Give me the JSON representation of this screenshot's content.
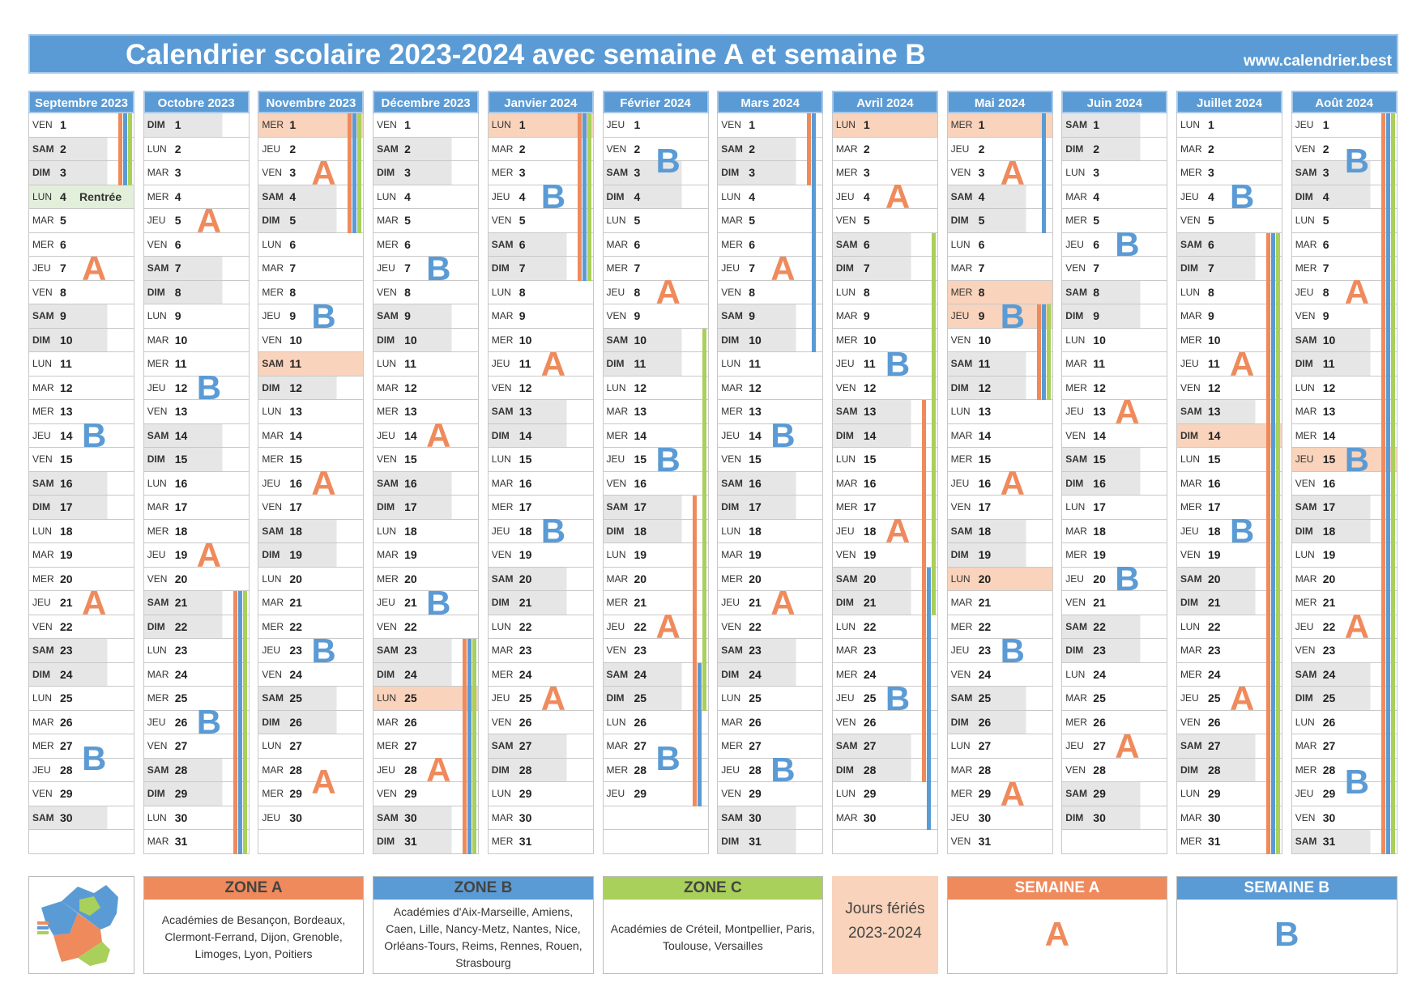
{
  "header": {
    "title": "Calendrier scolaire 2023-2024 avec semaine A et semaine B",
    "website": "www.calendrier.best"
  },
  "weekday_names": [
    "LUN",
    "MAR",
    "MER",
    "JEU",
    "VEN",
    "SAM",
    "DIM"
  ],
  "weekend": [
    5,
    6
  ],
  "week_colors": {
    "A": "#ef8a5c",
    "B": "#5b9bd5"
  },
  "holiday_color": "#f9d3bb",
  "zones": [
    {
      "title": "ZONE A",
      "color": "#ef8a5c",
      "text": "Académies de Besançon, Bordeaux, Clermont-Ferrand, Dijon, Grenoble, Limoges, Lyon, Poitiers"
    },
    {
      "title": "ZONE B",
      "color": "#5b9bd5",
      "text": "Académies d'Aix-Marseille, Amiens, Caen, Lille, Nancy-Metz, Nantes, Nice, Orléans-Tours, Reims, Rennes, Rouen, Strasbourg"
    },
    {
      "title": "ZONE C",
      "color": "#a9d05a",
      "text": "Académies de Créteil, Montpellier, Paris, Toulouse, Versailles"
    }
  ],
  "holidays_legend": {
    "title": "Jours fériés",
    "subtitle": "2023-2024"
  },
  "week_legend": [
    {
      "title": "SEMAINE A",
      "label": "A",
      "color": "#ef8a5c"
    },
    {
      "title": "SEMAINE B",
      "label": "B",
      "color": "#5b9bd5"
    }
  ],
  "months": [
    {
      "title": "Septembre 2023",
      "first_weekday": 4,
      "days": [
        1,
        2,
        3,
        4,
        5,
        6,
        7,
        8,
        9,
        10,
        11,
        12,
        13,
        14,
        15,
        16,
        17,
        18,
        19,
        20,
        21,
        22,
        23,
        24,
        25,
        26,
        27,
        28,
        29,
        30
      ],
      "weeks": [
        null,
        "A",
        "B",
        "A",
        "B"
      ],
      "public_holidays": [],
      "notes": [
        {
          "day": 4,
          "text": "Rentrée",
          "color": "#e2efda"
        }
      ],
      "bands": [
        {
          "zone": 0,
          "from": 1,
          "to": 3
        },
        {
          "zone": 1,
          "from": 1,
          "to": 3
        },
        {
          "zone": 2,
          "from": 1,
          "to": 3
        }
      ]
    },
    {
      "title": "Octobre 2023",
      "first_weekday": 6,
      "days": [
        1,
        2,
        3,
        4,
        5,
        6,
        7,
        8,
        9,
        10,
        11,
        12,
        13,
        14,
        15,
        16,
        17,
        18,
        19,
        20,
        21,
        22,
        23,
        24,
        25,
        26,
        27,
        28,
        29,
        30,
        31
      ],
      "weeks": [
        null,
        "A",
        "B",
        "A",
        "B",
        null
      ],
      "public_holidays": [],
      "notes": [],
      "bands": [
        {
          "zone": 0,
          "from": 21,
          "to": 31
        },
        {
          "zone": 1,
          "from": 21,
          "to": 31
        },
        {
          "zone": 2,
          "from": 21,
          "to": 31
        }
      ]
    },
    {
      "title": "Novembre 2023",
      "first_weekday": 2,
      "days": [
        1,
        2,
        3,
        4,
        5,
        6,
        7,
        8,
        9,
        10,
        11,
        12,
        13,
        14,
        15,
        16,
        17,
        18,
        19,
        20,
        21,
        22,
        23,
        24,
        25,
        26,
        27,
        28,
        29,
        30
      ],
      "weeks": [
        "A",
        "B",
        "A",
        "B",
        "A"
      ],
      "public_holidays": [
        1,
        11
      ],
      "notes": [],
      "bands": [
        {
          "zone": 0,
          "from": 1,
          "to": 5
        },
        {
          "zone": 1,
          "from": 1,
          "to": 5
        },
        {
          "zone": 2,
          "from": 1,
          "to": 5
        }
      ]
    },
    {
      "title": "Décembre 2023",
      "first_weekday": 4,
      "days": [
        1,
        2,
        3,
        4,
        5,
        6,
        7,
        8,
        9,
        10,
        11,
        12,
        13,
        14,
        15,
        16,
        17,
        18,
        19,
        20,
        21,
        22,
        23,
        24,
        25,
        26,
        27,
        28,
        29,
        30,
        31
      ],
      "weeks": [
        null,
        "B",
        "A",
        "B",
        "A"
      ],
      "public_holidays": [
        25
      ],
      "notes": [],
      "bands": [
        {
          "zone": 0,
          "from": 23,
          "to": 31
        },
        {
          "zone": 1,
          "from": 23,
          "to": 31
        },
        {
          "zone": 2,
          "from": 23,
          "to": 31
        }
      ]
    },
    {
      "title": "Janvier 2024",
      "first_weekday": 0,
      "days": [
        1,
        2,
        3,
        4,
        5,
        6,
        7,
        8,
        9,
        10,
        11,
        12,
        13,
        14,
        15,
        16,
        17,
        18,
        19,
        20,
        21,
        22,
        23,
        24,
        25,
        26,
        27,
        28,
        29,
        30,
        31
      ],
      "weeks": [
        "B",
        "A",
        "B",
        "A",
        null
      ],
      "public_holidays": [
        1
      ],
      "notes": [],
      "bands": [
        {
          "zone": 0,
          "from": 1,
          "to": 7
        },
        {
          "zone": 1,
          "from": 1,
          "to": 7
        },
        {
          "zone": 2,
          "from": 1,
          "to": 7
        }
      ]
    },
    {
      "title": "Février 2024",
      "first_weekday": 3,
      "days": [
        1,
        2,
        3,
        4,
        5,
        6,
        7,
        8,
        9,
        10,
        11,
        12,
        13,
        14,
        15,
        16,
        17,
        18,
        19,
        20,
        21,
        22,
        23,
        24,
        25,
        26,
        27,
        28,
        29
      ],
      "weeks": [
        "B",
        "A",
        "B",
        "A",
        "B"
      ],
      "public_holidays": [],
      "notes": [],
      "bands": [
        {
          "zone": 0,
          "from": 17,
          "to": 29
        },
        {
          "zone": 1,
          "from": 24,
          "to": 29
        },
        {
          "zone": 2,
          "from": 10,
          "to": 25
        }
      ]
    },
    {
      "title": "Mars 2024",
      "first_weekday": 4,
      "days": [
        1,
        2,
        3,
        4,
        5,
        6,
        7,
        8,
        9,
        10,
        11,
        12,
        13,
        14,
        15,
        16,
        17,
        18,
        19,
        20,
        21,
        22,
        23,
        24,
        25,
        26,
        27,
        28,
        29,
        30,
        31
      ],
      "weeks": [
        null,
        "A",
        "B",
        "A",
        "B"
      ],
      "public_holidays": [],
      "notes": [],
      "bands": [
        {
          "zone": 0,
          "from": 1,
          "to": 3
        },
        {
          "zone": 1,
          "from": 1,
          "to": 10
        }
      ]
    },
    {
      "title": "Avril 2024",
      "first_weekday": 0,
      "days": [
        1,
        2,
        3,
        4,
        5,
        6,
        7,
        8,
        9,
        10,
        11,
        12,
        13,
        14,
        15,
        16,
        17,
        18,
        19,
        20,
        21,
        22,
        23,
        24,
        25,
        26,
        27,
        28,
        29,
        30
      ],
      "weeks": [
        "A",
        "B",
        "A",
        "B",
        null
      ],
      "public_holidays": [
        1
      ],
      "notes": [],
      "bands": [
        {
          "zone": 0,
          "from": 13,
          "to": 28
        },
        {
          "zone": 1,
          "from": 20,
          "to": 30
        },
        {
          "zone": 2,
          "from": 6,
          "to": 21
        }
      ]
    },
    {
      "title": "Mai 2024",
      "first_weekday": 2,
      "days": [
        1,
        2,
        3,
        4,
        5,
        6,
        7,
        8,
        9,
        10,
        11,
        12,
        13,
        14,
        15,
        16,
        17,
        18,
        19,
        20,
        21,
        22,
        23,
        24,
        25,
        26,
        27,
        28,
        29,
        30,
        31
      ],
      "weeks": [
        "A",
        "B",
        "A",
        "B",
        "A"
      ],
      "public_holidays": [
        1,
        8,
        9,
        20
      ],
      "notes": [],
      "bands": [
        {
          "zone": 1,
          "from": 1,
          "to": 5
        },
        {
          "zone": 0,
          "from": 9,
          "to": 12
        },
        {
          "zone": 1,
          "from": 9,
          "to": 12
        },
        {
          "zone": 2,
          "from": 9,
          "to": 12
        }
      ]
    },
    {
      "title": "Juin 2024",
      "first_weekday": 5,
      "days": [
        1,
        2,
        3,
        4,
        5,
        6,
        7,
        8,
        9,
        10,
        11,
        12,
        13,
        14,
        15,
        16,
        17,
        18,
        19,
        20,
        21,
        22,
        23,
        24,
        25,
        26,
        27,
        28,
        29,
        30
      ],
      "weeks": [
        null,
        "B",
        "A",
        "B",
        "A"
      ],
      "public_holidays": [],
      "notes": [],
      "bands": []
    },
    {
      "title": "Juillet 2024",
      "first_weekday": 0,
      "days": [
        1,
        2,
        3,
        4,
        5,
        6,
        7,
        8,
        9,
        10,
        11,
        12,
        13,
        14,
        15,
        16,
        17,
        18,
        19,
        20,
        21,
        22,
        23,
        24,
        25,
        26,
        27,
        28,
        29,
        30,
        31
      ],
      "weeks": [
        "B",
        "A",
        "B",
        "A",
        null
      ],
      "public_holidays": [
        14
      ],
      "notes": [],
      "bands": [
        {
          "zone": 0,
          "from": 6,
          "to": 31
        },
        {
          "zone": 1,
          "from": 6,
          "to": 31
        },
        {
          "zone": 2,
          "from": 6,
          "to": 31
        }
      ]
    },
    {
      "title": "Août 2024",
      "first_weekday": 3,
      "days": [
        1,
        2,
        3,
        4,
        5,
        6,
        7,
        8,
        9,
        10,
        11,
        12,
        13,
        14,
        15,
        16,
        17,
        18,
        19,
        20,
        21,
        22,
        23,
        24,
        25,
        26,
        27,
        28,
        29,
        30,
        31
      ],
      "weeks": [
        "B",
        "A",
        "B",
        "A",
        "B"
      ],
      "public_holidays": [
        15
      ],
      "notes": [],
      "bands": [
        {
          "zone": 0,
          "from": 1,
          "to": 31
        },
        {
          "zone": 1,
          "from": 1,
          "to": 31
        },
        {
          "zone": 2,
          "from": 1,
          "to": 31
        }
      ]
    }
  ]
}
